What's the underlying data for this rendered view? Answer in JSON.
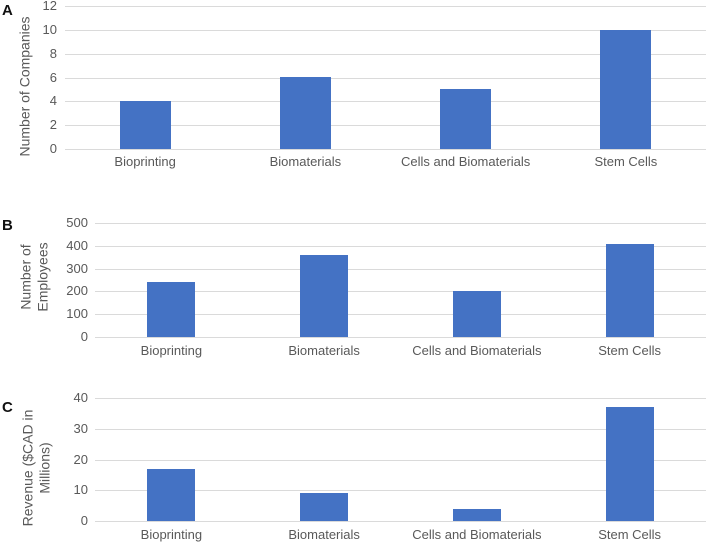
{
  "figure": {
    "background": "#ffffff",
    "bar_color": "#4472C4",
    "gridline_color": "#DADADA",
    "axis_label_color": "#595959",
    "panel_letter_color": "#111111"
  },
  "chart_data": [
    {
      "type": "bar",
      "panel_label": "A",
      "title": "",
      "categories": [
        "Bioprinting",
        "Biomaterials",
        "Cells and Biomaterials",
        "Stem Cells"
      ],
      "values": [
        4,
        6,
        5,
        10
      ],
      "xlabel": "",
      "ylabel": "Number of Companies",
      "ylabel_lines": [
        "Number of Companies"
      ],
      "ylim": [
        0,
        12
      ],
      "yticks": [
        0,
        2,
        4,
        6,
        8,
        10,
        12
      ],
      "grid": true,
      "legend": false,
      "bar_color": "#4472C4"
    },
    {
      "type": "bar",
      "panel_label": "B",
      "title": "",
      "categories": [
        "Bioprinting",
        "Biomaterials",
        "Cells and Biomaterials",
        "Stem Cells"
      ],
      "values": [
        240,
        360,
        200,
        410
      ],
      "xlabel": "",
      "ylabel": "Number of Employees",
      "ylabel_lines": [
        "Number of",
        "Employees"
      ],
      "ylim": [
        0,
        500
      ],
      "yticks": [
        0,
        100,
        200,
        300,
        400,
        500
      ],
      "grid": true,
      "legend": false,
      "bar_color": "#4472C4"
    },
    {
      "type": "bar",
      "panel_label": "C",
      "title": "",
      "categories": [
        "Bioprinting",
        "Biomaterials",
        "Cells and Biomaterials",
        "Stem Cells"
      ],
      "values": [
        17,
        9,
        4,
        37
      ],
      "xlabel": "",
      "ylabel": "Revenue ($CAD in Millions)",
      "ylabel_lines": [
        "Revenue ($CAD in",
        "Millions)"
      ],
      "ylim": [
        0,
        40
      ],
      "yticks": [
        0,
        10,
        20,
        30,
        40
      ],
      "grid": true,
      "legend": false,
      "bar_color": "#4472C4"
    }
  ]
}
